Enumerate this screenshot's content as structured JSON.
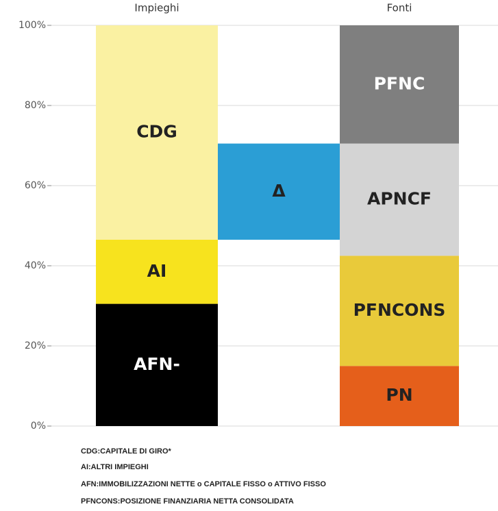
{
  "chart_data": {
    "type": "stacked_column",
    "columns": [
      {
        "label": "Impieghi",
        "segments": [
          {
            "name": "AFN-",
            "value": 30.5,
            "color": "#000000",
            "text_color": "#ffffff"
          },
          {
            "name": "AI",
            "value": 16,
            "color": "#f7e31e",
            "text_color": "#222222"
          },
          {
            "name": "CDG",
            "value": 53.5,
            "color": "#faf1a2",
            "text_color": "#222222"
          }
        ]
      },
      {
        "label": null,
        "segments": [
          {
            "name": "Δ",
            "range": [
              46.5,
              70.5
            ],
            "color": "#2b9ed5",
            "text_color": "#222222"
          }
        ]
      },
      {
        "label": "Fonti",
        "segments": [
          {
            "name": "PN",
            "value": 15,
            "color": "#e55f1b",
            "text_color": "#222222"
          },
          {
            "name": "PFNCONS",
            "value": 27.5,
            "color": "#e9ca3a",
            "text_color": "#222222"
          },
          {
            "name": "APNCF",
            "value": 28,
            "color": "#d4d4d4",
            "text_color": "#222222"
          },
          {
            "name": "PFNC",
            "value": 29.5,
            "color": "#7f7f7f",
            "text_color": "#ffffff"
          }
        ]
      }
    ],
    "ylim": [
      0,
      100
    ],
    "yticks": [
      {
        "value": 0,
        "label": "0%"
      },
      {
        "value": 20,
        "label": "20%"
      },
      {
        "value": 40,
        "label": "40%"
      },
      {
        "value": 60,
        "label": "60%"
      },
      {
        "value": 80,
        "label": "80%"
      },
      {
        "value": 100,
        "label": "100%"
      }
    ],
    "grid": true,
    "notes": [
      "CDG:CAPITALE DI GIRO*",
      "AI:ALTRI IMPIEGHI",
      "AFN:IMMOBILIZZAZIONI NETTE o CAPITALE FISSO o ATTIVO FISSO",
      "PFNCONS:POSIZIONE FINANZIARIA NETTA CONSOLIDATA"
    ]
  }
}
